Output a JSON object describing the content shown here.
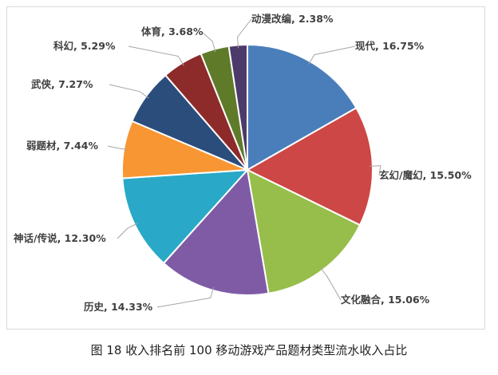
{
  "chart_data": {
    "type": "pie",
    "categories": [
      "现代",
      "玄幻/魔幻",
      "文化融合",
      "历史",
      "神话/传说",
      "弱题材",
      "武侠",
      "科幻",
      "体育",
      "动漫改编"
    ],
    "values": [
      16.75,
      15.5,
      15.06,
      14.33,
      12.3,
      7.44,
      7.27,
      5.29,
      3.68,
      2.38
    ],
    "data_labels": [
      "现代, 16.75%",
      "玄幻/魔幻, 15.50%",
      "文化融合, 15.06%",
      "历史, 14.33%",
      "神话/传说, 12.30%",
      "弱题材, 7.44%",
      "武侠, 7.27%",
      "科幻, 5.29%",
      "体育, 3.68%",
      "动漫改编, 2.38%"
    ],
    "colors": [
      "#4a7ebb",
      "#cc4745",
      "#97be4b",
      "#7f5ba6",
      "#29a9c7",
      "#f79633",
      "#2a4d7c",
      "#8c2b2a",
      "#5f7b2a",
      "#4c3a6b"
    ],
    "legend": "none"
  },
  "caption": "图 18  收入排名前 100 移动游戏产品题材类型流水收入占比"
}
